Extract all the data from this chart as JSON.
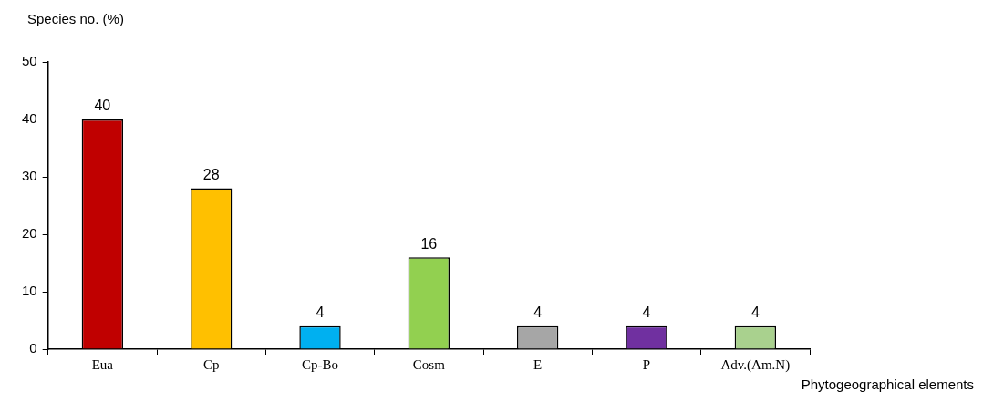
{
  "chart_data": {
    "type": "bar",
    "ylabel": "Species no. (%)",
    "xlabel": "Phytogeographical elements",
    "categories": [
      "Eua",
      "Cp",
      "Cp-Bo",
      "Cosm",
      "E",
      "P",
      "Adv.(Am.N)"
    ],
    "values": [
      40,
      28,
      4,
      16,
      4,
      4,
      4
    ],
    "colors": [
      "#c00000",
      "#ffc000",
      "#00b0f0",
      "#92d050",
      "#a6a6a6",
      "#7030a0",
      "#a9d18e"
    ],
    "ylim": [
      0,
      50
    ],
    "yticks": [
      0,
      10,
      20,
      30,
      40,
      50
    ],
    "data_labels": true,
    "legend": false
  }
}
